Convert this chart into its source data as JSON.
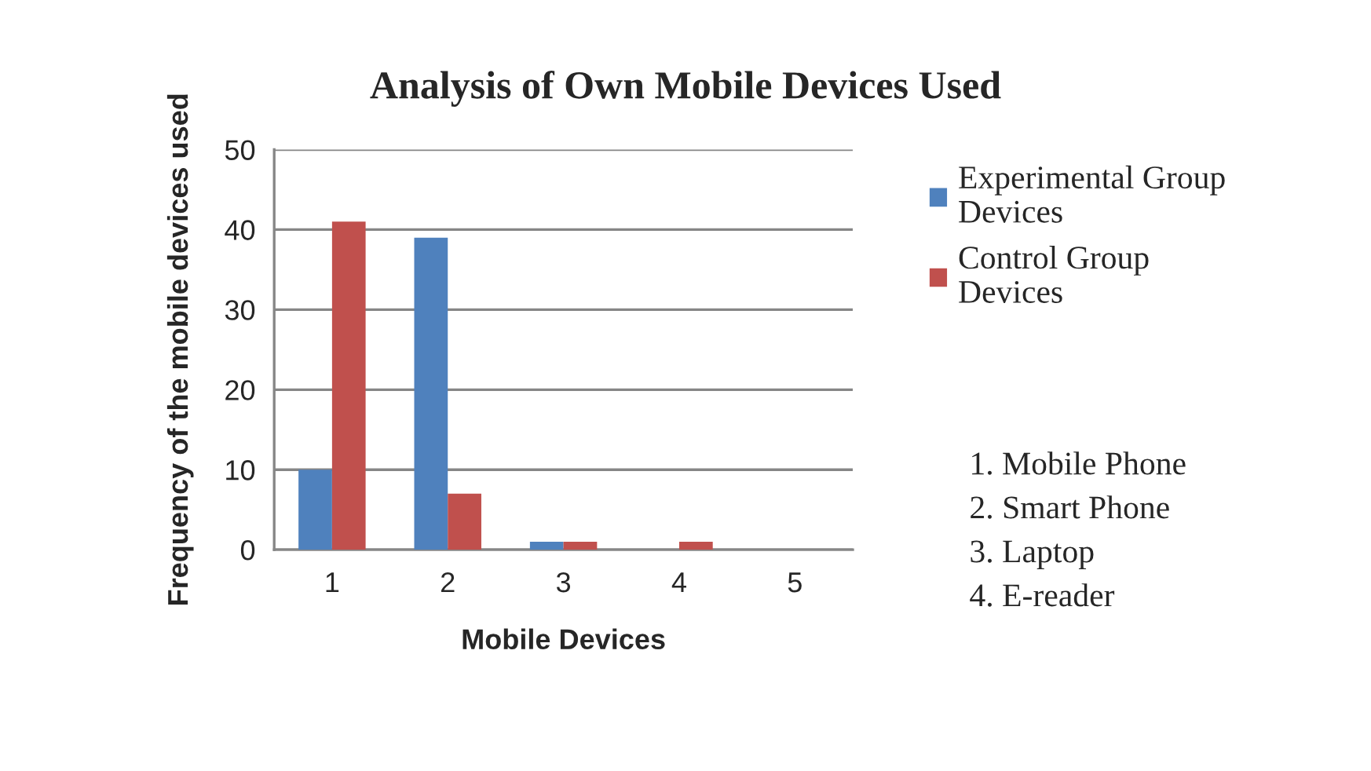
{
  "chart_data": {
    "type": "bar",
    "title": "Analysis of Own Mobile Devices Used",
    "xlabel": "Mobile Devices",
    "ylabel": "Frequency of the mobile devices used",
    "categories": [
      "1",
      "2",
      "3",
      "4",
      "5"
    ],
    "series": [
      {
        "name": "Experimental Group\nDevices",
        "color": "#4f81bd",
        "values": [
          10,
          39,
          1,
          0,
          0
        ]
      },
      {
        "name": "Control Group\nDevices",
        "color": "#c0504d",
        "values": [
          41,
          7,
          1,
          1,
          0
        ]
      }
    ],
    "ylim": [
      0,
      50
    ],
    "yticks": [
      0,
      10,
      20,
      30,
      40,
      50
    ],
    "grid": "y",
    "legend": "right",
    "annotations": [
      "1. Mobile Phone",
      "2. Smart Phone",
      "3. Laptop",
      "4. E-reader"
    ]
  }
}
